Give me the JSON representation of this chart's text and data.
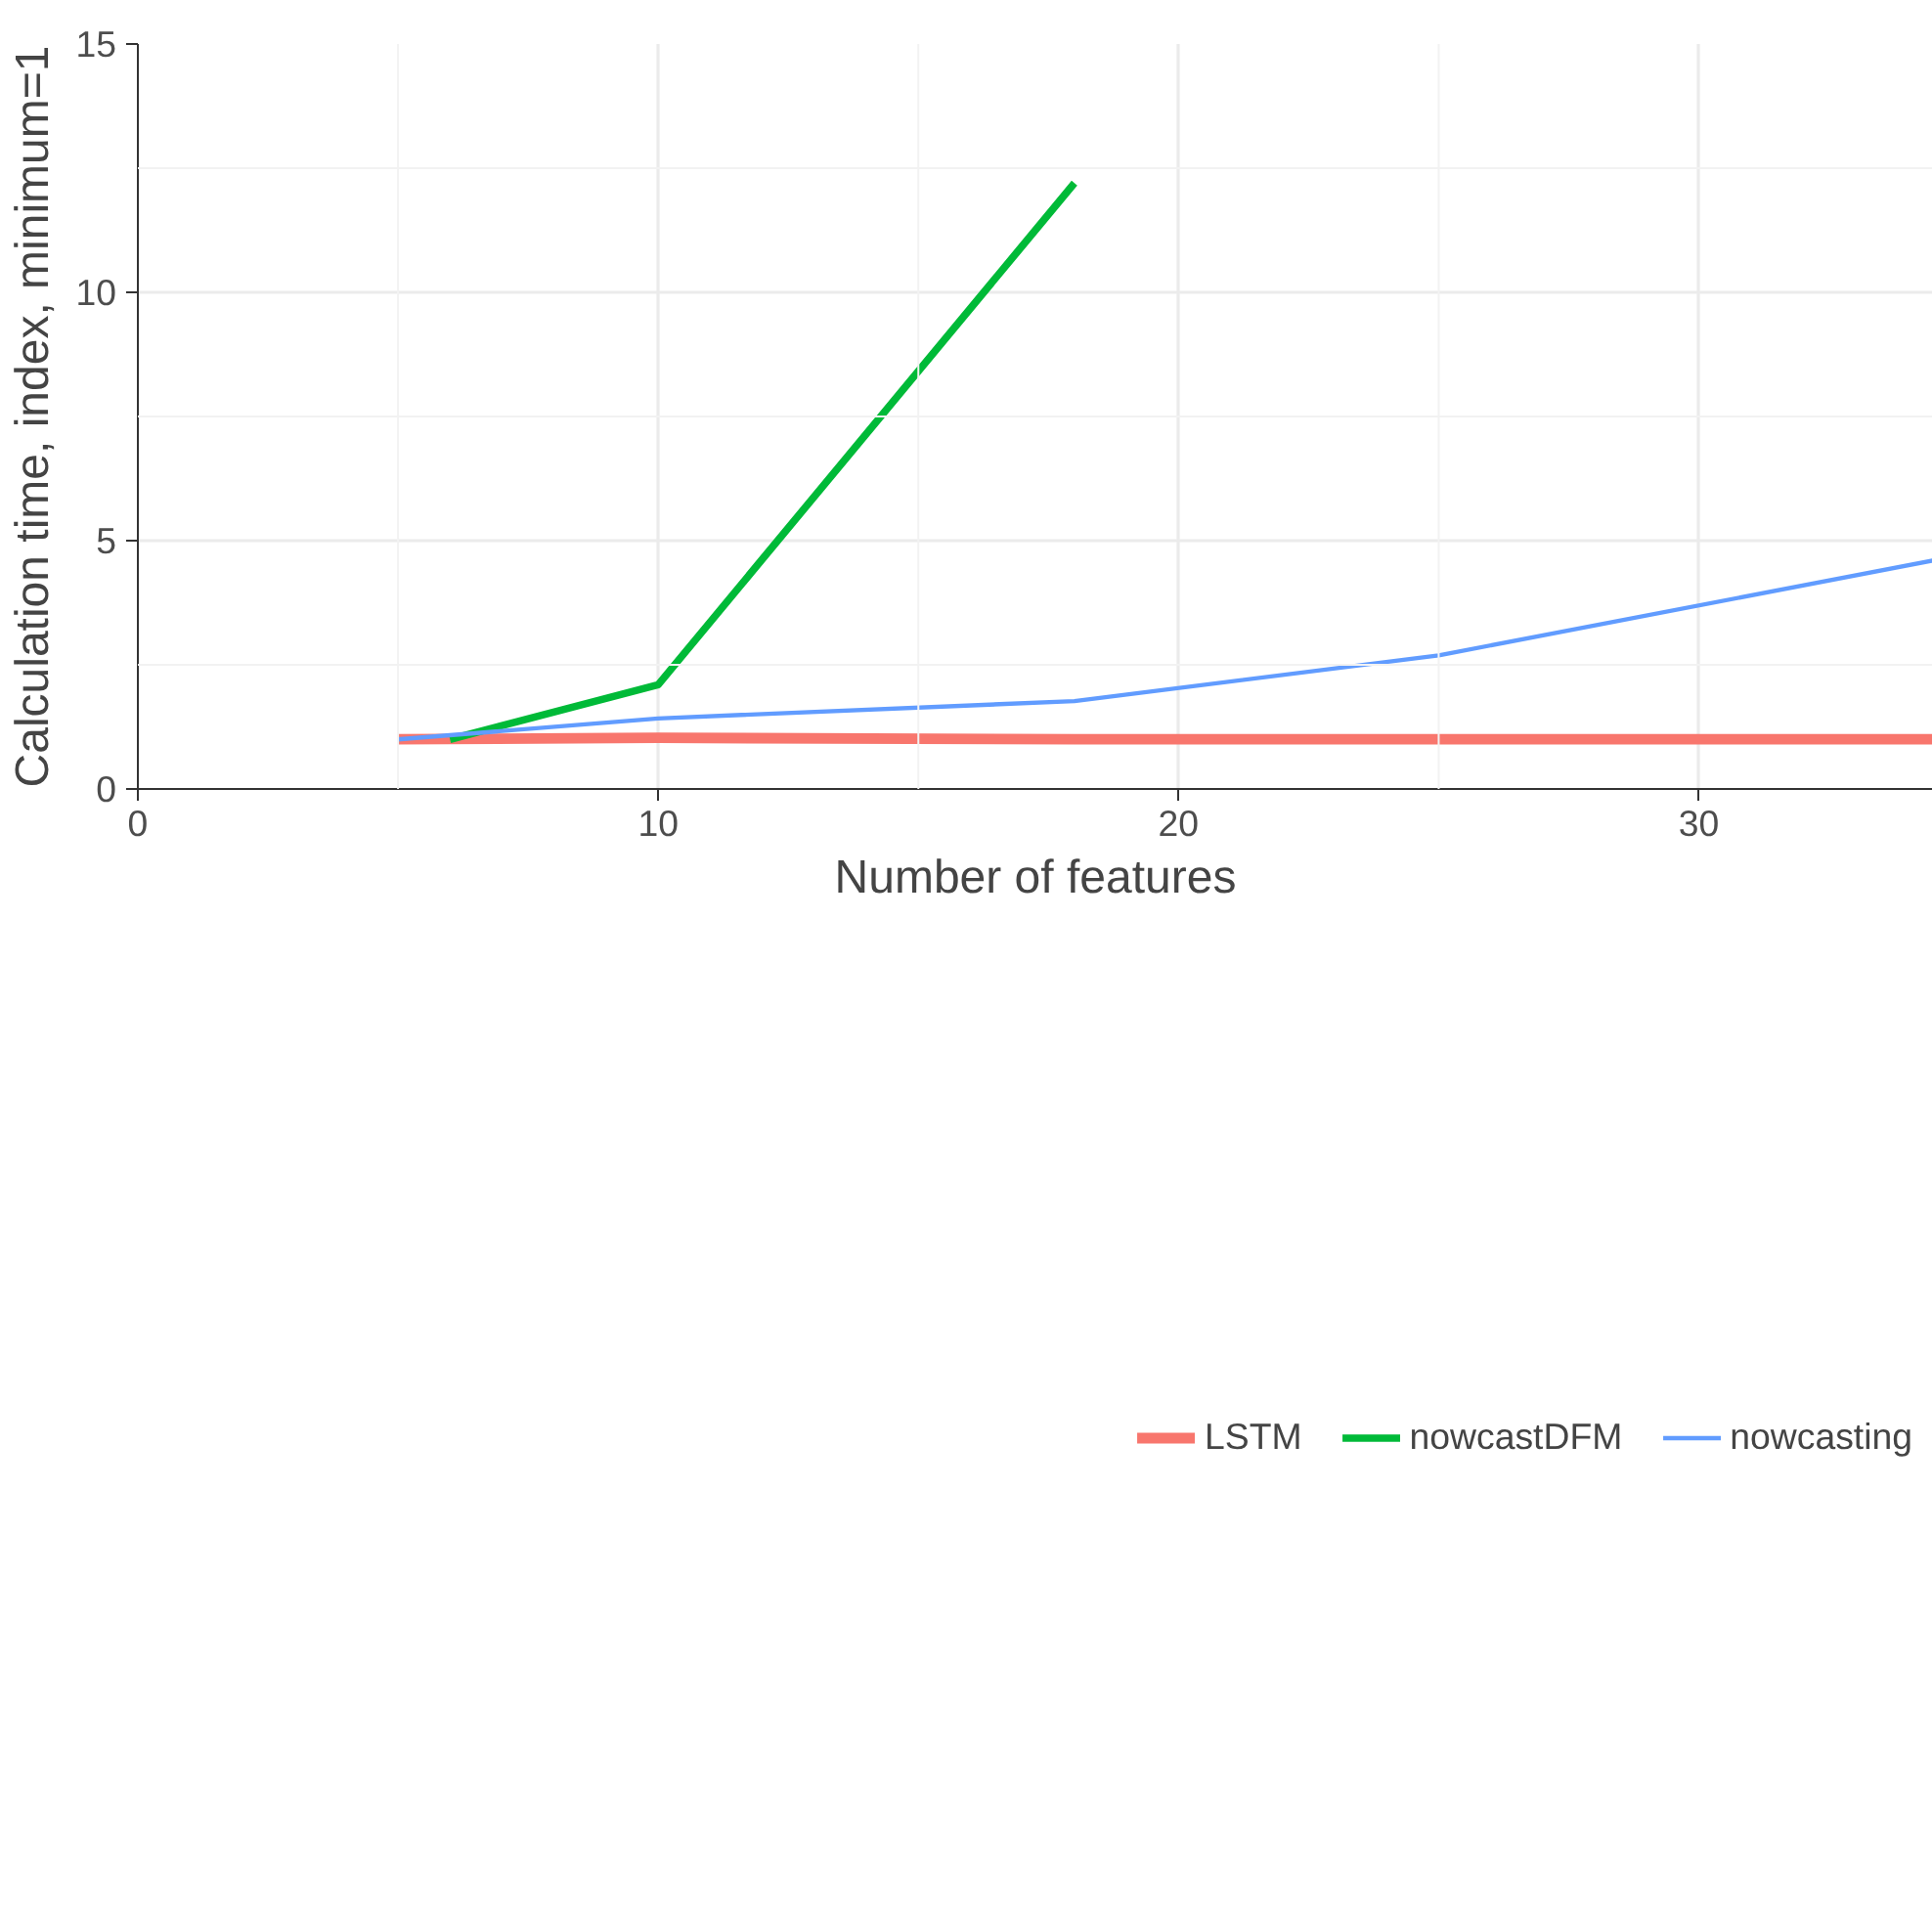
{
  "chart_data": {
    "type": "line",
    "xlabel": "Number of features",
    "ylabel": "Calculation time, index, minimum=1",
    "xlim": [
      0,
      34.5
    ],
    "ylim": [
      0,
      15
    ],
    "xticks": [
      0,
      10,
      20,
      30
    ],
    "yticks": [
      0,
      5,
      10,
      15
    ],
    "grid": true,
    "legend": "bottom",
    "line_style": "solid",
    "marker": "none",
    "series": [
      {
        "name": "LSTM",
        "color": "#f8766d",
        "x": [
          5,
          10,
          18,
          25,
          34.5
        ],
        "values": [
          1.0,
          1.03,
          1.0,
          1.0,
          1.0
        ]
      },
      {
        "name": "nowcastDFM",
        "color": "#00ba38",
        "x": [
          6,
          10,
          18
        ],
        "values": [
          1.0,
          2.1,
          12.2
        ]
      },
      {
        "name": "nowcasting",
        "color": "#619cff",
        "x": [
          5,
          10,
          18,
          25,
          34.5
        ],
        "values": [
          1.0,
          1.42,
          1.77,
          2.69,
          4.6
        ]
      }
    ]
  }
}
